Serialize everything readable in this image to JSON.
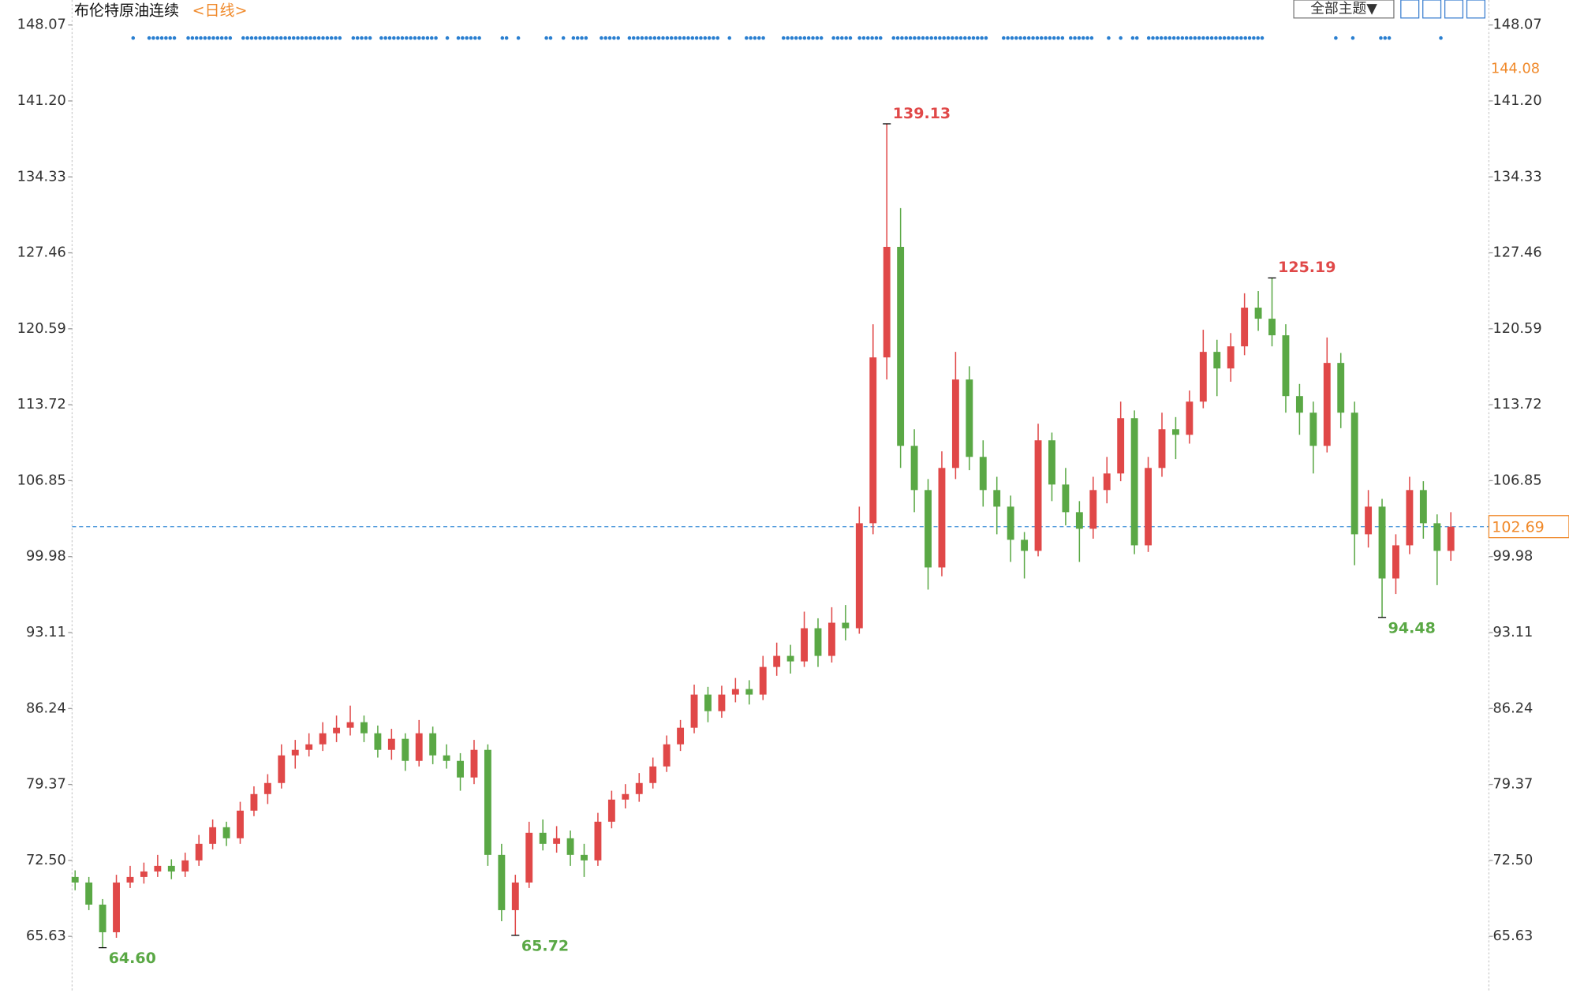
{
  "chart_data": {
    "type": "candlestick",
    "title": "布伦特原油连续",
    "subtitle": "<日线>",
    "theme_button": "全部主题▼",
    "rise_color": "#e04848",
    "fall_color": "#5aa845",
    "open": [
      71.0,
      70.5,
      68.5,
      66.0,
      70.5,
      71.0,
      71.5,
      72.0,
      71.5,
      72.5,
      74.0,
      75.5,
      74.5,
      77.0,
      78.5,
      79.5,
      82.0,
      82.5,
      83.0,
      84.0,
      84.5,
      85.0,
      84.0,
      82.5,
      83.5,
      81.5,
      84.0,
      82.0,
      81.5,
      80.0,
      82.5,
      73.0,
      68.0,
      70.5,
      75.0,
      74.0,
      74.5,
      73.0,
      72.5,
      76.0,
      78.0,
      78.5,
      79.5,
      81.0,
      83.0,
      84.5,
      87.5,
      86.0,
      87.5,
      88.0,
      87.5,
      90.0,
      91.0,
      90.5,
      93.5,
      91.0,
      94.0,
      93.5,
      103.0,
      118.0,
      128.0,
      110.0,
      106.0,
      99.0,
      108.0,
      116.0,
      109.0,
      106.0,
      104.5,
      101.5,
      100.5,
      110.5,
      106.5,
      104.0,
      102.5,
      106.0,
      107.5,
      112.5,
      101.0,
      108.0,
      111.5,
      111.0,
      114.0,
      118.5,
      117.0,
      119.0,
      122.5,
      121.5,
      120.0,
      114.5,
      113.0,
      110.0,
      117.5,
      113.0,
      102.0,
      104.5,
      98.0,
      101.0,
      106.0,
      103.0,
      100.5
    ],
    "high": [
      71.6,
      71.0,
      69.0,
      71.2,
      72.0,
      72.3,
      73.0,
      72.6,
      73.2,
      74.8,
      76.2,
      76.0,
      77.8,
      79.2,
      80.3,
      83.0,
      83.4,
      84.0,
      85.0,
      85.6,
      86.5,
      85.6,
      84.7,
      84.4,
      84.0,
      85.2,
      84.6,
      83.0,
      82.2,
      83.4,
      83.0,
      74.0,
      71.2,
      76.0,
      76.2,
      75.6,
      75.2,
      74.0,
      76.8,
      78.8,
      79.4,
      80.4,
      81.8,
      83.8,
      85.2,
      88.4,
      88.2,
      88.3,
      89.0,
      88.8,
      91.0,
      92.2,
      92.0,
      95.0,
      94.4,
      95.4,
      95.6,
      104.5,
      121.0,
      139.13,
      131.5,
      111.5,
      107.0,
      109.5,
      118.5,
      117.2,
      110.5,
      107.2,
      105.5,
      102.2,
      112.0,
      111.2,
      108.0,
      105.0,
      107.2,
      109.0,
      114.0,
      113.2,
      109.0,
      113.0,
      112.6,
      115.0,
      120.5,
      119.6,
      120.2,
      123.8,
      124.0,
      125.19,
      121.0,
      115.6,
      114.0,
      119.8,
      118.4,
      114.0,
      106.0,
      105.2,
      102.0,
      107.2,
      106.8,
      103.8,
      104.0
    ],
    "low": [
      69.8,
      68.0,
      64.6,
      65.5,
      70.0,
      70.4,
      71.0,
      70.8,
      71.0,
      72.0,
      73.5,
      73.8,
      74.0,
      76.5,
      77.6,
      79.0,
      80.8,
      81.9,
      82.4,
      83.2,
      83.8,
      83.2,
      81.8,
      81.6,
      80.6,
      81.0,
      81.2,
      80.8,
      78.8,
      79.4,
      72.0,
      67.0,
      65.72,
      70.0,
      73.4,
      73.2,
      72.0,
      71.0,
      72.0,
      75.4,
      77.2,
      77.8,
      79.0,
      80.5,
      82.4,
      84.0,
      85.0,
      85.4,
      86.8,
      86.6,
      87.0,
      89.2,
      89.4,
      90.0,
      90.0,
      90.4,
      92.4,
      93.0,
      102.0,
      116.0,
      108.0,
      104.0,
      97.0,
      98.2,
      107.0,
      107.8,
      104.5,
      102.0,
      99.5,
      98.0,
      100.0,
      105.0,
      102.8,
      99.5,
      101.6,
      104.8,
      106.8,
      100.2,
      100.4,
      107.2,
      108.8,
      110.2,
      113.4,
      114.5,
      115.8,
      118.2,
      120.4,
      119.0,
      113.0,
      111.0,
      107.5,
      109.4,
      111.6,
      99.2,
      100.8,
      94.48,
      96.6,
      100.2,
      101.6,
      97.4,
      99.6
    ],
    "close": [
      70.5,
      68.5,
      66.0,
      70.5,
      71.0,
      71.5,
      72.0,
      71.5,
      72.5,
      74.0,
      75.5,
      74.5,
      77.0,
      78.5,
      79.5,
      82.0,
      82.5,
      83.0,
      84.0,
      84.5,
      85.0,
      84.0,
      82.5,
      83.5,
      81.5,
      84.0,
      82.0,
      81.5,
      80.0,
      82.5,
      73.0,
      68.0,
      70.5,
      75.0,
      74.0,
      74.5,
      73.0,
      72.5,
      76.0,
      78.0,
      78.5,
      79.5,
      81.0,
      83.0,
      84.5,
      87.5,
      86.0,
      87.5,
      88.0,
      87.5,
      90.0,
      91.0,
      90.5,
      93.5,
      91.0,
      94.0,
      93.5,
      103.0,
      118.0,
      128.0,
      110.0,
      106.0,
      99.0,
      108.0,
      116.0,
      109.0,
      106.0,
      104.5,
      101.5,
      100.5,
      110.5,
      106.5,
      104.0,
      102.5,
      106.0,
      107.5,
      112.5,
      101.0,
      108.0,
      111.5,
      111.0,
      114.0,
      118.5,
      117.0,
      119.0,
      122.5,
      121.5,
      120.0,
      114.5,
      113.0,
      110.0,
      117.5,
      113.0,
      102.0,
      104.5,
      98.0,
      101.0,
      106.0,
      103.0,
      100.5,
      102.69
    ],
    "high_labels": [
      139.13,
      125.19
    ],
    "low_labels": [
      {
        "value": 64.6,
        "label": "64.60"
      },
      65.72,
      94.48
    ],
    "last_price": 102.69,
    "right_marker": 144.08,
    "ylim": [
      60.74,
      150.33
    ],
    "yticks": [
      65.63,
      {
        "value": 72.5,
        "label": "72.50"
      },
      79.37,
      86.24,
      93.11,
      99.98,
      106.85,
      113.72,
      120.59,
      127.46,
      134.33,
      {
        "value": 141.2,
        "label": "141.20"
      },
      148.07
    ]
  }
}
